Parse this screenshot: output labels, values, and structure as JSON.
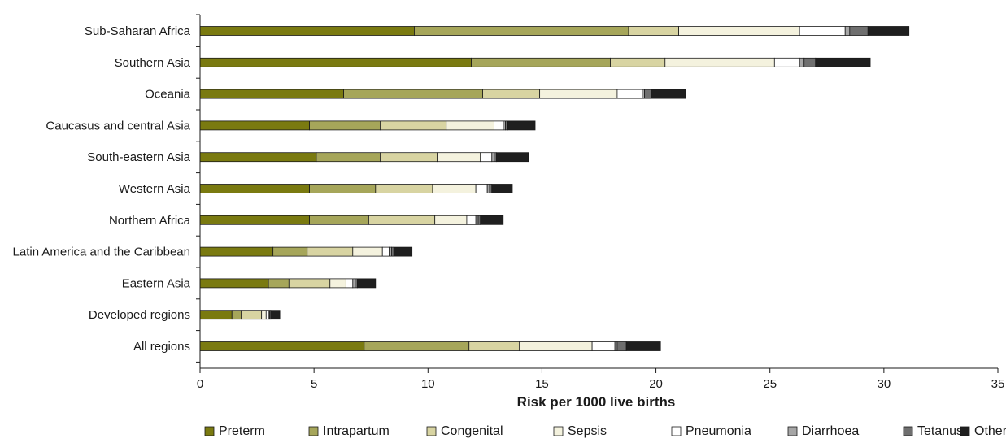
{
  "chart_data": {
    "type": "bar",
    "orientation": "horizontal",
    "stacked": true,
    "categories": [
      "Sub-Saharan Africa",
      "Southern Asia",
      "Oceania",
      "Caucasus and central Asia",
      "South-eastern Asia",
      "Western Asia",
      "Northern Africa",
      "Latin America and the Caribbean",
      "Eastern Asia",
      "Developed regions",
      "All regions"
    ],
    "series": [
      {
        "name": "Preterm",
        "color": "#7a7a10",
        "values": [
          9.4,
          11.9,
          6.3,
          4.8,
          5.1,
          4.8,
          4.8,
          3.2,
          3.0,
          1.4,
          7.2
        ]
      },
      {
        "name": "Intrapartum",
        "color": "#a6a65a",
        "values": [
          9.4,
          6.1,
          6.1,
          3.1,
          2.8,
          2.9,
          2.6,
          1.5,
          0.9,
          0.4,
          4.6
        ]
      },
      {
        "name": "Congenital",
        "color": "#d8d4a2",
        "values": [
          2.2,
          2.4,
          2.5,
          2.9,
          2.5,
          2.5,
          2.9,
          2.0,
          1.8,
          0.9,
          2.2
        ]
      },
      {
        "name": "Sepsis",
        "color": "#f4f2de",
        "values": [
          5.3,
          4.8,
          3.4,
          2.1,
          1.9,
          1.9,
          1.4,
          1.3,
          0.7,
          0.2,
          3.2
        ]
      },
      {
        "name": "Pneumonia",
        "color": "#ffffff",
        "values": [
          2.0,
          1.1,
          1.1,
          0.4,
          0.5,
          0.5,
          0.4,
          0.3,
          0.3,
          0.1,
          1.0
        ]
      },
      {
        "name": "Diarrhoea",
        "color": "#a6a6a6",
        "values": [
          0.2,
          0.2,
          0.1,
          0.1,
          0.1,
          0.1,
          0.1,
          0.1,
          0.1,
          0.05,
          0.1
        ]
      },
      {
        "name": "Tetanus",
        "color": "#6f6f6f",
        "values": [
          0.8,
          0.5,
          0.3,
          0.1,
          0.1,
          0.1,
          0.1,
          0.1,
          0.1,
          0.05,
          0.4
        ]
      },
      {
        "name": "Other",
        "color": "#1f1f1f",
        "values": [
          1.8,
          2.4,
          1.5,
          1.2,
          1.4,
          0.9,
          1.0,
          0.8,
          0.8,
          0.4,
          1.5
        ]
      }
    ],
    "xlabel": "Risk per 1000 live births",
    "ylabel": "",
    "xlim": [
      0,
      35
    ],
    "xticks": [
      0,
      5,
      10,
      15,
      20,
      25,
      30,
      35
    ],
    "grid": false,
    "legend_position": "bottom"
  }
}
